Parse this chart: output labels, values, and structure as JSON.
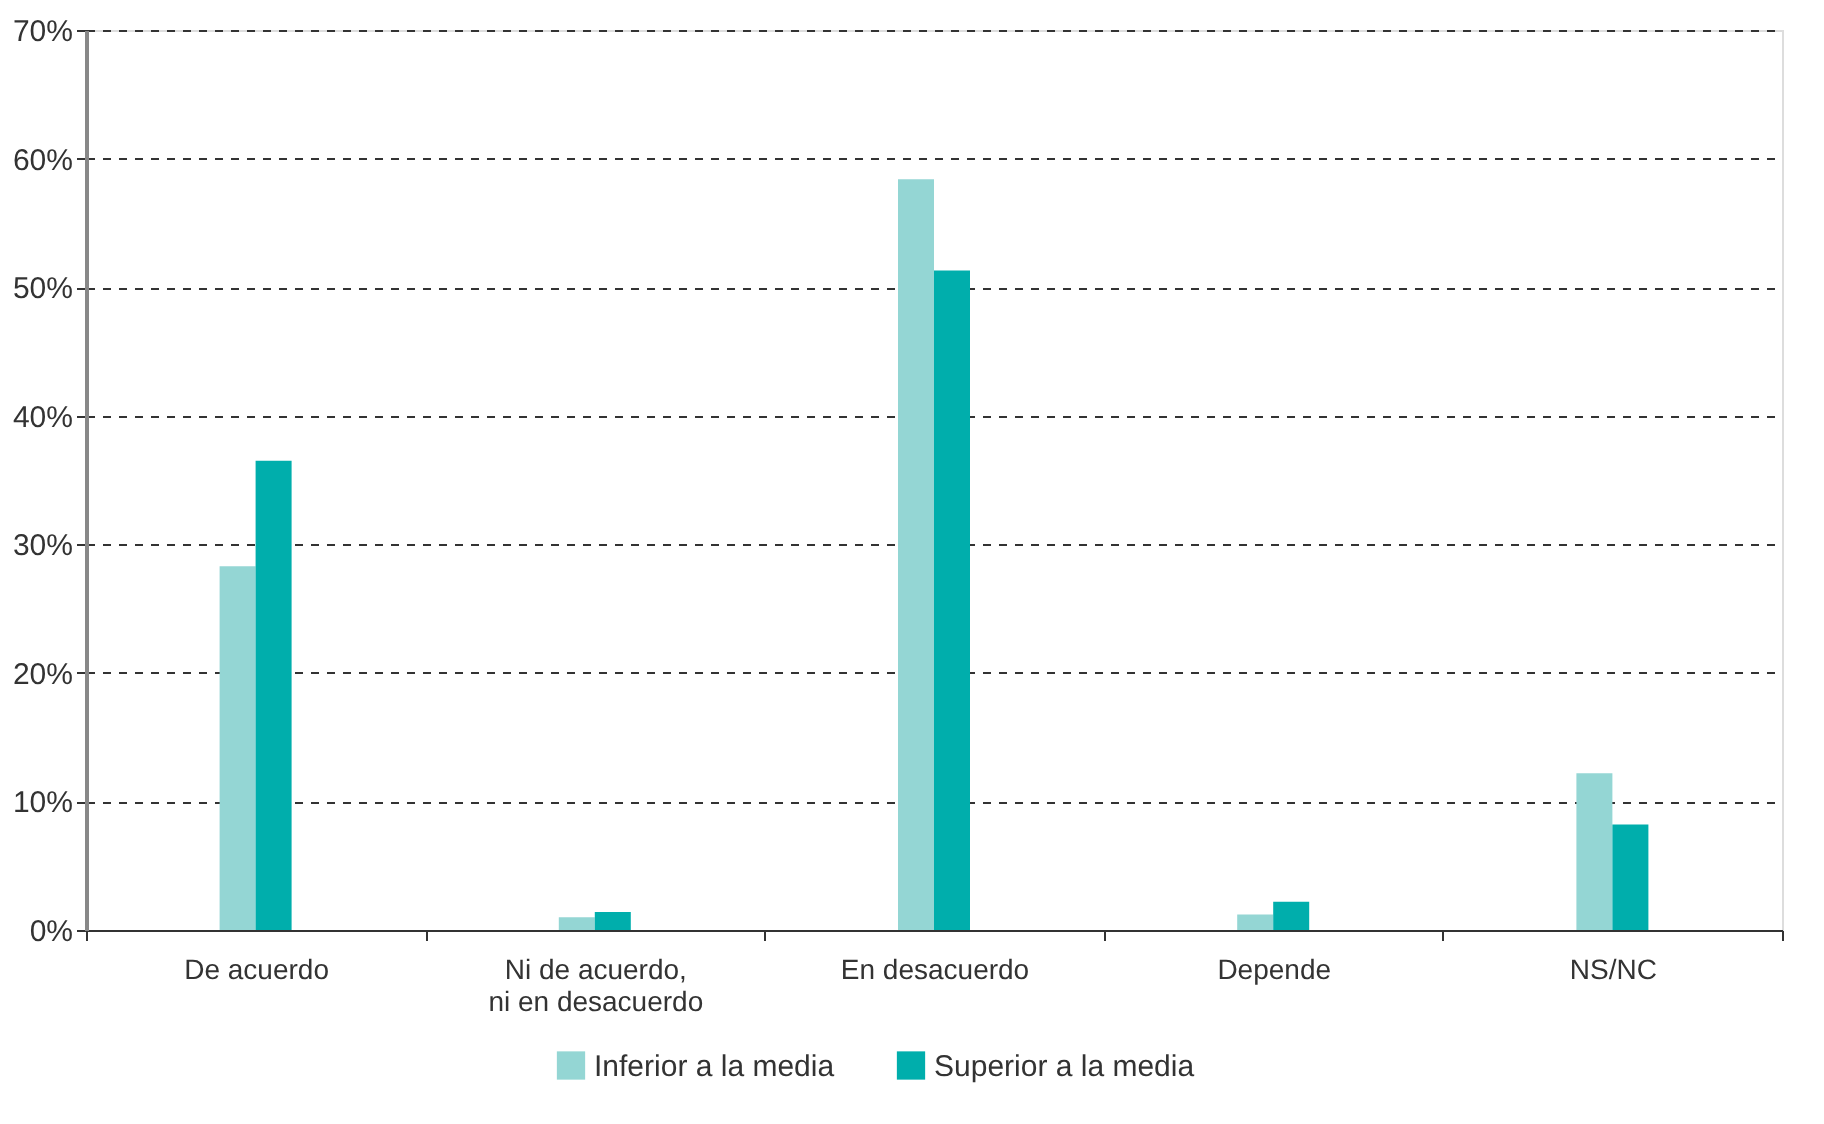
{
  "chart_data": {
    "type": "bar",
    "categories": [
      "De acuerdo",
      "Ni de acuerdo,\nni en desacuerdo",
      "En desacuerdo",
      "Depende",
      "NS/NC"
    ],
    "series": [
      {
        "name": "Inferior a la media",
        "color": "#94d6d4",
        "values": [
          28.3,
          1.0,
          58.4,
          1.2,
          12.2
        ]
      },
      {
        "name": "Superior a la media",
        "color": "#00aeac",
        "values": [
          36.5,
          1.4,
          51.3,
          2.2,
          8.2
        ]
      }
    ],
    "ylim": [
      0,
      70
    ],
    "yticks": [
      {
        "value": 0,
        "label": "0%"
      },
      {
        "value": 10,
        "label": "10%"
      },
      {
        "value": 20,
        "label": "20%"
      },
      {
        "value": 30,
        "label": "30%"
      },
      {
        "value": 40,
        "label": "40%"
      },
      {
        "value": 50,
        "label": "50%"
      },
      {
        "value": 60,
        "label": "60%"
      },
      {
        "value": 70,
        "label": "70%"
      }
    ],
    "grid": "y",
    "legend": "bottom"
  }
}
